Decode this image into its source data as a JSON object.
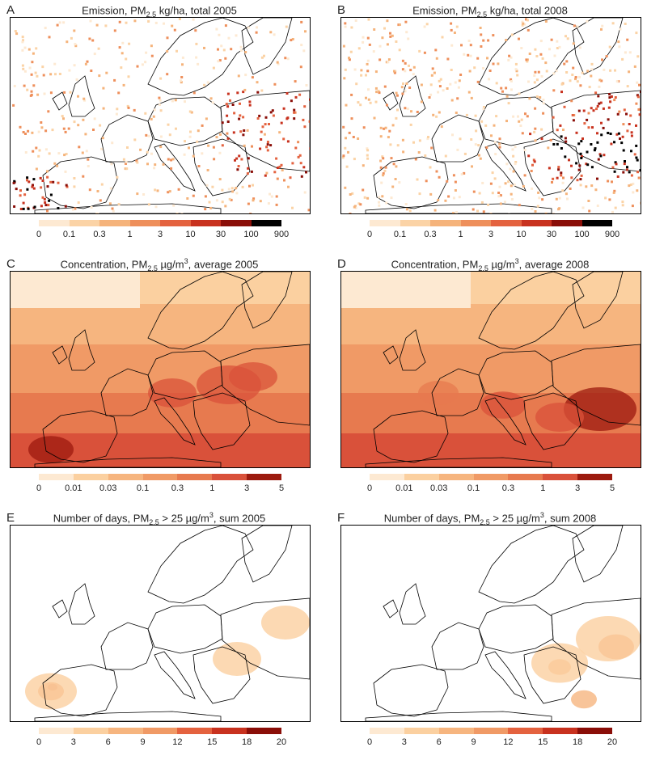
{
  "panels": [
    {
      "letter": "A",
      "title_pre": "Emission, PM",
      "title_sub": "2.5",
      "title_mid": " kg/ha, total 2005",
      "title_sup": "",
      "title_post": "",
      "ticks": [
        "0",
        "0.1",
        "0.3",
        "1",
        "3",
        "10",
        "30",
        "100",
        "900"
      ],
      "colors": [
        "#fde9d2",
        "#fbd3a6",
        "#f5b37b",
        "#ee8f5b",
        "#e4623f",
        "#c8321f",
        "#8a0e08",
        "#000000"
      ],
      "pattern": "emission",
      "year": 2005
    },
    {
      "letter": "B",
      "title_pre": "Emission, PM",
      "title_sub": "2.5",
      "title_mid": " kg/ha, total 2008",
      "title_sup": "",
      "title_post": "",
      "ticks": [
        "0",
        "0.1",
        "0.3",
        "1",
        "3",
        "10",
        "30",
        "100",
        "900"
      ],
      "colors": [
        "#fde9d2",
        "#fbd3a6",
        "#f5b37b",
        "#ee8f5b",
        "#e4623f",
        "#c8321f",
        "#8a0e08",
        "#000000"
      ],
      "pattern": "emission",
      "year": 2008
    },
    {
      "letter": "C",
      "title_pre": "Concentration, PM",
      "title_sub": "2.5",
      "title_mid": " µg/m",
      "title_sup": "3",
      "title_post": ", average 2005",
      "ticks": [
        "0",
        "0.01",
        "0.03",
        "0.1",
        "0.3",
        "1",
        "3",
        "5"
      ],
      "colors": [
        "#fde9d2",
        "#fbd0a0",
        "#f6b57f",
        "#f09a66",
        "#e77a4f",
        "#d9513a",
        "#9c1a0f"
      ],
      "pattern": "concentration",
      "year": 2005
    },
    {
      "letter": "D",
      "title_pre": "Concentration, PM",
      "title_sub": "2.5",
      "title_mid": " µg/m",
      "title_sup": "3",
      "title_post": ", average 2008",
      "ticks": [
        "0",
        "0.01",
        "0.03",
        "0.1",
        "0.3",
        "1",
        "3",
        "5"
      ],
      "colors": [
        "#fde9d2",
        "#fbd0a0",
        "#f6b57f",
        "#f09a66",
        "#e77a4f",
        "#d9513a",
        "#9c1a0f"
      ],
      "pattern": "concentration",
      "year": 2008
    },
    {
      "letter": "E",
      "title_pre": "Number of days, PM",
      "title_sub": "2.5",
      "title_mid": " > 25 µg/m",
      "title_sup": "3",
      "title_post": ", sum 2005",
      "ticks": [
        "0",
        "3",
        "6",
        "9",
        "12",
        "15",
        "18",
        "20"
      ],
      "colors": [
        "#fde9d2",
        "#fbd0a0",
        "#f6b57f",
        "#f09a66",
        "#e4623f",
        "#c8321f",
        "#8a0e08"
      ],
      "pattern": "days",
      "year": 2005
    },
    {
      "letter": "F",
      "title_pre": "Number of days, PM",
      "title_sub": "2.5",
      "title_mid": " > 25 µg/m",
      "title_sup": "3",
      "title_post": ", sum 2008",
      "ticks": [
        "0",
        "3",
        "6",
        "9",
        "12",
        "15",
        "18",
        "20"
      ],
      "colors": [
        "#fde9d2",
        "#fbd0a0",
        "#f6b57f",
        "#f09a66",
        "#e4623f",
        "#c8321f",
        "#8a0e08"
      ],
      "pattern": "days",
      "year": 2008
    }
  ]
}
